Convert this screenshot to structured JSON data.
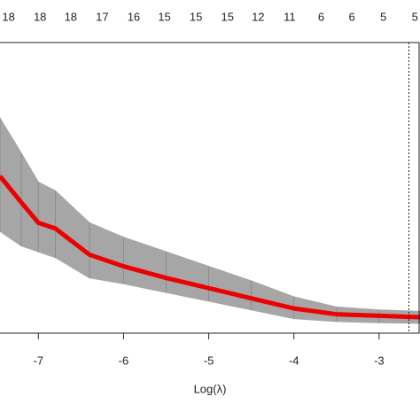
{
  "chart_data": {
    "type": "line",
    "x_label": "Log(λ)",
    "x": [
      -7.45,
      -7.2,
      -7,
      -6.8,
      -6.4,
      -6,
      -5.5,
      -5,
      -4.5,
      -4,
      -3.5,
      -3,
      -2.52
    ],
    "values": [
      54,
      45,
      38,
      36,
      27,
      23,
      19,
      15.5,
      12,
      8.5,
      6.5,
      6,
      5.5
    ],
    "upper": [
      74,
      62,
      52,
      49,
      38,
      33,
      28,
      23,
      18,
      12.5,
      9,
      8,
      7.5
    ],
    "lower": [
      35,
      30,
      28,
      26,
      19,
      17,
      14,
      11,
      8,
      5,
      4,
      3.6,
      3.4
    ],
    "color": "#ee0000",
    "band_color": "#a6a6a6",
    "xlim": [
      -7.45,
      -2.52
    ],
    "ylim": [
      0,
      100
    ],
    "xticks": [
      -7,
      -6,
      -5,
      -4,
      -3
    ],
    "vline": -2.65,
    "top_labels": [
      "18",
      "18",
      "18",
      "17",
      "16",
      "15",
      "15",
      "15",
      "12",
      "11",
      "6",
      "6",
      "5",
      "5"
    ],
    "top_label_x": [
      -7.35,
      -6.98,
      -6.62,
      -6.25,
      -5.88,
      -5.52,
      -5.15,
      -4.78,
      -4.42,
      -4.05,
      -3.68,
      -3.32,
      -2.95,
      -2.58
    ]
  }
}
